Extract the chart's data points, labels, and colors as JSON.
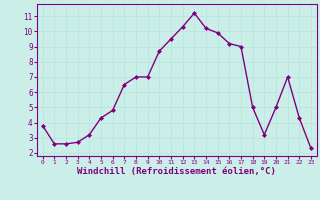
{
  "x": [
    0,
    1,
    2,
    3,
    4,
    5,
    6,
    7,
    8,
    9,
    10,
    11,
    12,
    13,
    14,
    15,
    16,
    17,
    18,
    19,
    20,
    21,
    22,
    23
  ],
  "y": [
    3.8,
    2.6,
    2.6,
    2.7,
    3.2,
    4.3,
    4.8,
    6.5,
    7.0,
    7.0,
    8.7,
    9.5,
    10.3,
    11.2,
    10.2,
    9.9,
    9.2,
    9.0,
    5.0,
    3.2,
    5.0,
    7.0,
    4.3,
    2.3
  ],
  "line_color": "#800080",
  "marker": "D",
  "marker_size": 2.0,
  "linewidth": 1.0,
  "xlabel": "Windchill (Refroidissement éolien,°C)",
  "xlabel_fontsize": 6.5,
  "ytick_labels": [
    "2",
    "3",
    "4",
    "5",
    "6",
    "7",
    "8",
    "9",
    "10",
    "11"
  ],
  "ytick_values": [
    2,
    3,
    4,
    5,
    6,
    7,
    8,
    9,
    10,
    11
  ],
  "xlim": [
    -0.5,
    23.5
  ],
  "ylim": [
    1.8,
    11.8
  ],
  "background_color": "#cceee8",
  "grid_color": "#aadddd",
  "spine_color": "#800080"
}
